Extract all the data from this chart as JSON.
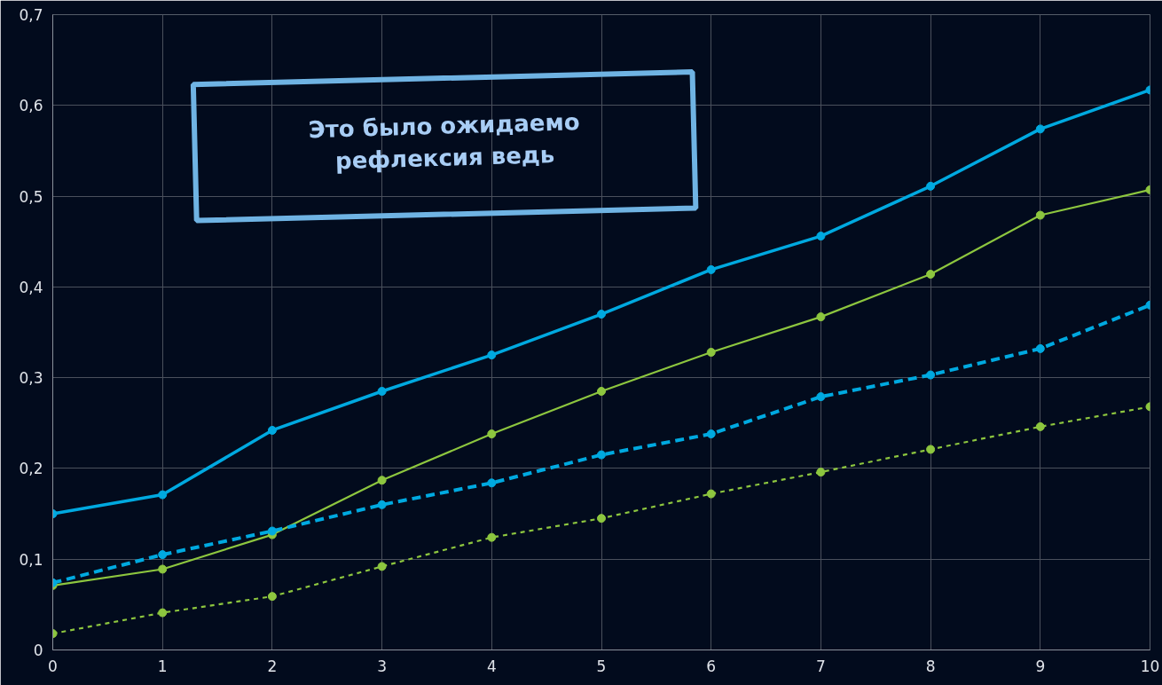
{
  "chart_data": {
    "type": "line",
    "x": [
      0,
      1,
      2,
      3,
      4,
      5,
      6,
      7,
      8,
      9,
      10
    ],
    "series": [
      {
        "color": "#00a9e0",
        "line_style": "solid",
        "values": [
          0.15,
          0.171,
          0.242,
          0.285,
          0.325,
          0.37,
          0.419,
          0.456,
          0.511,
          0.574,
          0.617
        ]
      },
      {
        "color": "#8dc63f",
        "line_style": "solid",
        "values": [
          0.071,
          0.089,
          0.127,
          0.187,
          0.238,
          0.285,
          0.328,
          0.367,
          0.414,
          0.479,
          0.507
        ]
      },
      {
        "color": "#00a9e0",
        "line_style": "dashed",
        "values": [
          0.074,
          0.105,
          0.131,
          0.16,
          0.184,
          0.215,
          0.238,
          0.279,
          0.303,
          0.332,
          0.38
        ]
      },
      {
        "color": "#8dc63f",
        "line_style": "dotted",
        "values": [
          0.018,
          0.041,
          0.059,
          0.092,
          0.124,
          0.145,
          0.172,
          0.196,
          0.221,
          0.246,
          0.268
        ]
      }
    ],
    "marker": "circle",
    "xlim": [
      0,
      10
    ],
    "xticks": [
      0,
      1,
      2,
      3,
      4,
      5,
      6,
      7,
      8,
      9,
      10
    ],
    "ylim": [
      0,
      0.7
    ],
    "yticks": [
      0,
      {
        "value": 0.1,
        "label": "0,1"
      },
      {
        "value": 0.2,
        "label": "0,2"
      },
      {
        "value": 0.3,
        "label": "0,3"
      },
      {
        "value": 0.4,
        "label": "0,4"
      },
      {
        "value": 0.5,
        "label": "0,5"
      },
      {
        "value": 0.6,
        "label": "0,6"
      },
      {
        "value": 0.7,
        "label": "0,7"
      }
    ],
    "grid": true,
    "annotations": [
      "Это было ожидаемо\nрефлексия ведь"
    ]
  }
}
